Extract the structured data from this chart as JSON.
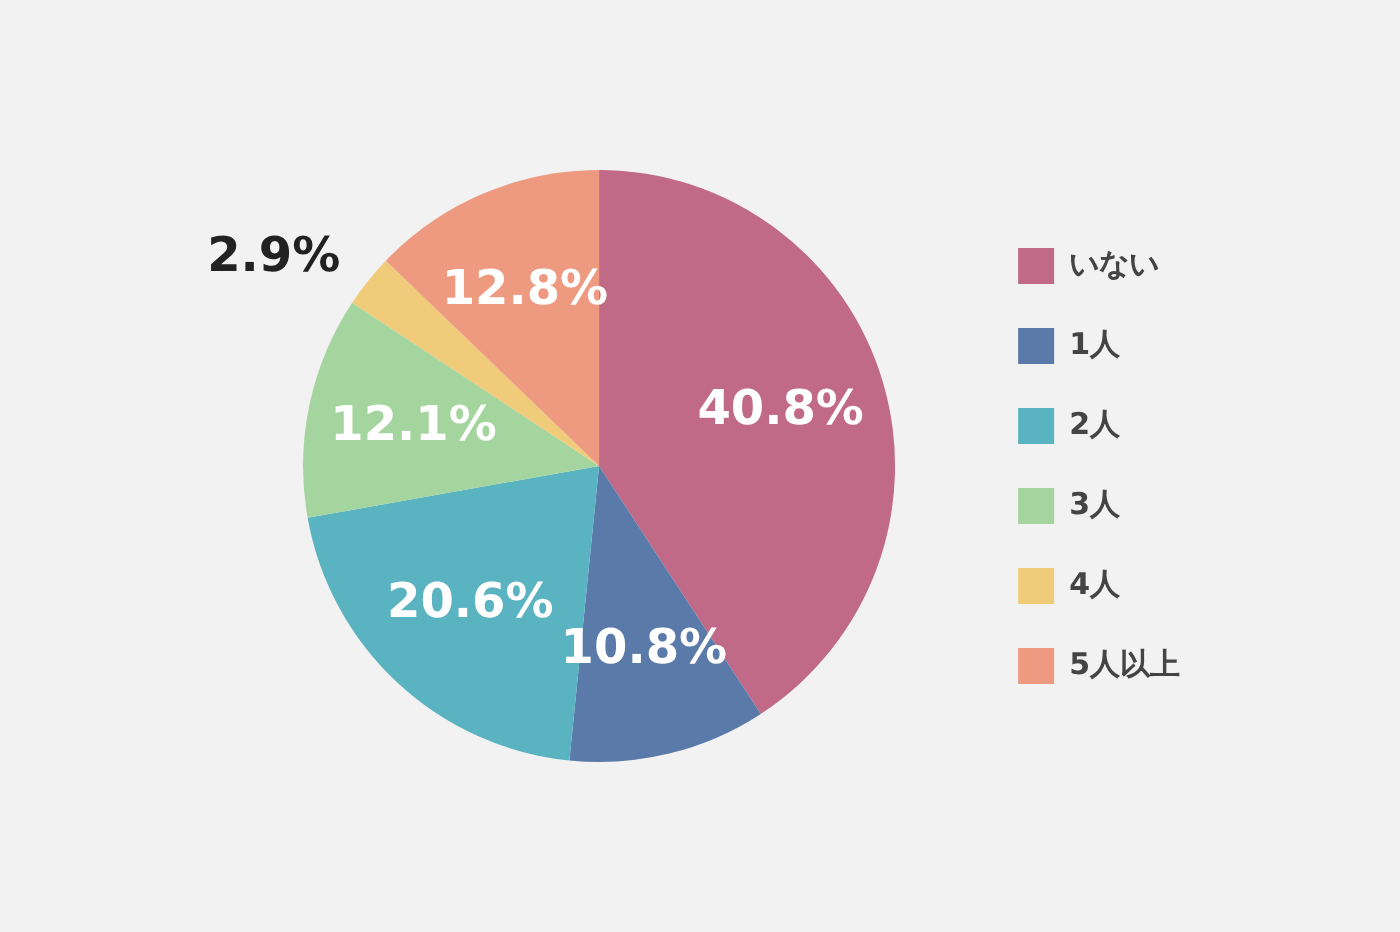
{
  "chart_data": {
    "type": "pie",
    "categories": [
      "いない",
      "1人",
      "2人",
      "3人",
      "4人",
      "5人以上"
    ],
    "values": [
      40.8,
      10.8,
      20.6,
      12.1,
      2.9,
      12.8
    ],
    "value_labels": [
      "40.8%",
      "10.8%",
      "20.6%",
      "12.1%",
      "2.9%",
      "12.8%"
    ],
    "colors": [
      "#c06a87",
      "#5a7aaa",
      "#5ab3c0",
      "#a5d59e",
      "#f0cb7a",
      "#ee9a80"
    ],
    "legend": "right"
  }
}
